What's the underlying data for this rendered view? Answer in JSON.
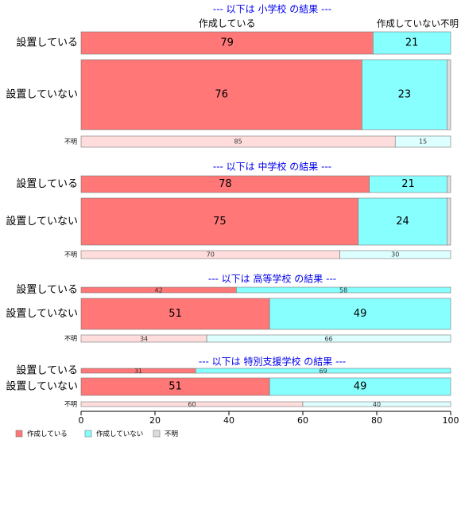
{
  "colors": {
    "created": "#ff7777",
    "created_light": "#ffdddd",
    "not_created": "#88ffff",
    "not_created_light": "#ddffff",
    "unknown": "#dddddd",
    "title": "#0000ee",
    "outline": "#777777"
  },
  "chart_data": {
    "type": "bar",
    "orientation": "horizontal-stacked-100",
    "xlim": [
      0,
      100
    ],
    "x_ticks": [
      "0",
      "20",
      "40",
      "60",
      "80",
      "100"
    ],
    "grid": false,
    "legend_position": "bottom-left",
    "column_headers": [
      "作成している",
      "作成していない",
      "不明"
    ],
    "legend": [
      {
        "label": "作成している",
        "color": "#ff7777"
      },
      {
        "label": "作成していない",
        "color": "#88ffff"
      },
      {
        "label": "不明",
        "color": "#dddddd"
      }
    ],
    "panels": [
      {
        "title": "--- 以下は 小学校 の結果 ---",
        "rows": [
          {
            "label": "設置している",
            "values": [
              79,
              21,
              0
            ]
          },
          {
            "label": "設置していない",
            "values": [
              76,
              23,
              0
            ]
          },
          {
            "label": "不明",
            "values": [
              85,
              15,
              0
            ]
          }
        ]
      },
      {
        "title": "--- 以下は 中学校 の結果 ---",
        "rows": [
          {
            "label": "設置している",
            "values": [
              78,
              21,
              0
            ]
          },
          {
            "label": "設置していない",
            "values": [
              75,
              24,
              0
            ]
          },
          {
            "label": "不明",
            "values": [
              70,
              30,
              0
            ]
          }
        ]
      },
      {
        "title": "--- 以下は 高等学校 の結果 ---",
        "rows": [
          {
            "label": "設置している",
            "values": [
              42,
              58,
              0
            ]
          },
          {
            "label": "設置していない",
            "values": [
              51,
              49,
              0
            ]
          },
          {
            "label": "不明",
            "values": [
              34,
              66,
              0
            ]
          }
        ]
      },
      {
        "title": "--- 以下は 特別支援学校 の結果 ---",
        "rows": [
          {
            "label": "設置している",
            "values": [
              31,
              69,
              0
            ]
          },
          {
            "label": "設置していない",
            "values": [
              51,
              49,
              0
            ]
          },
          {
            "label": "不明",
            "values": [
              60,
              40,
              0
            ]
          }
        ]
      }
    ]
  }
}
